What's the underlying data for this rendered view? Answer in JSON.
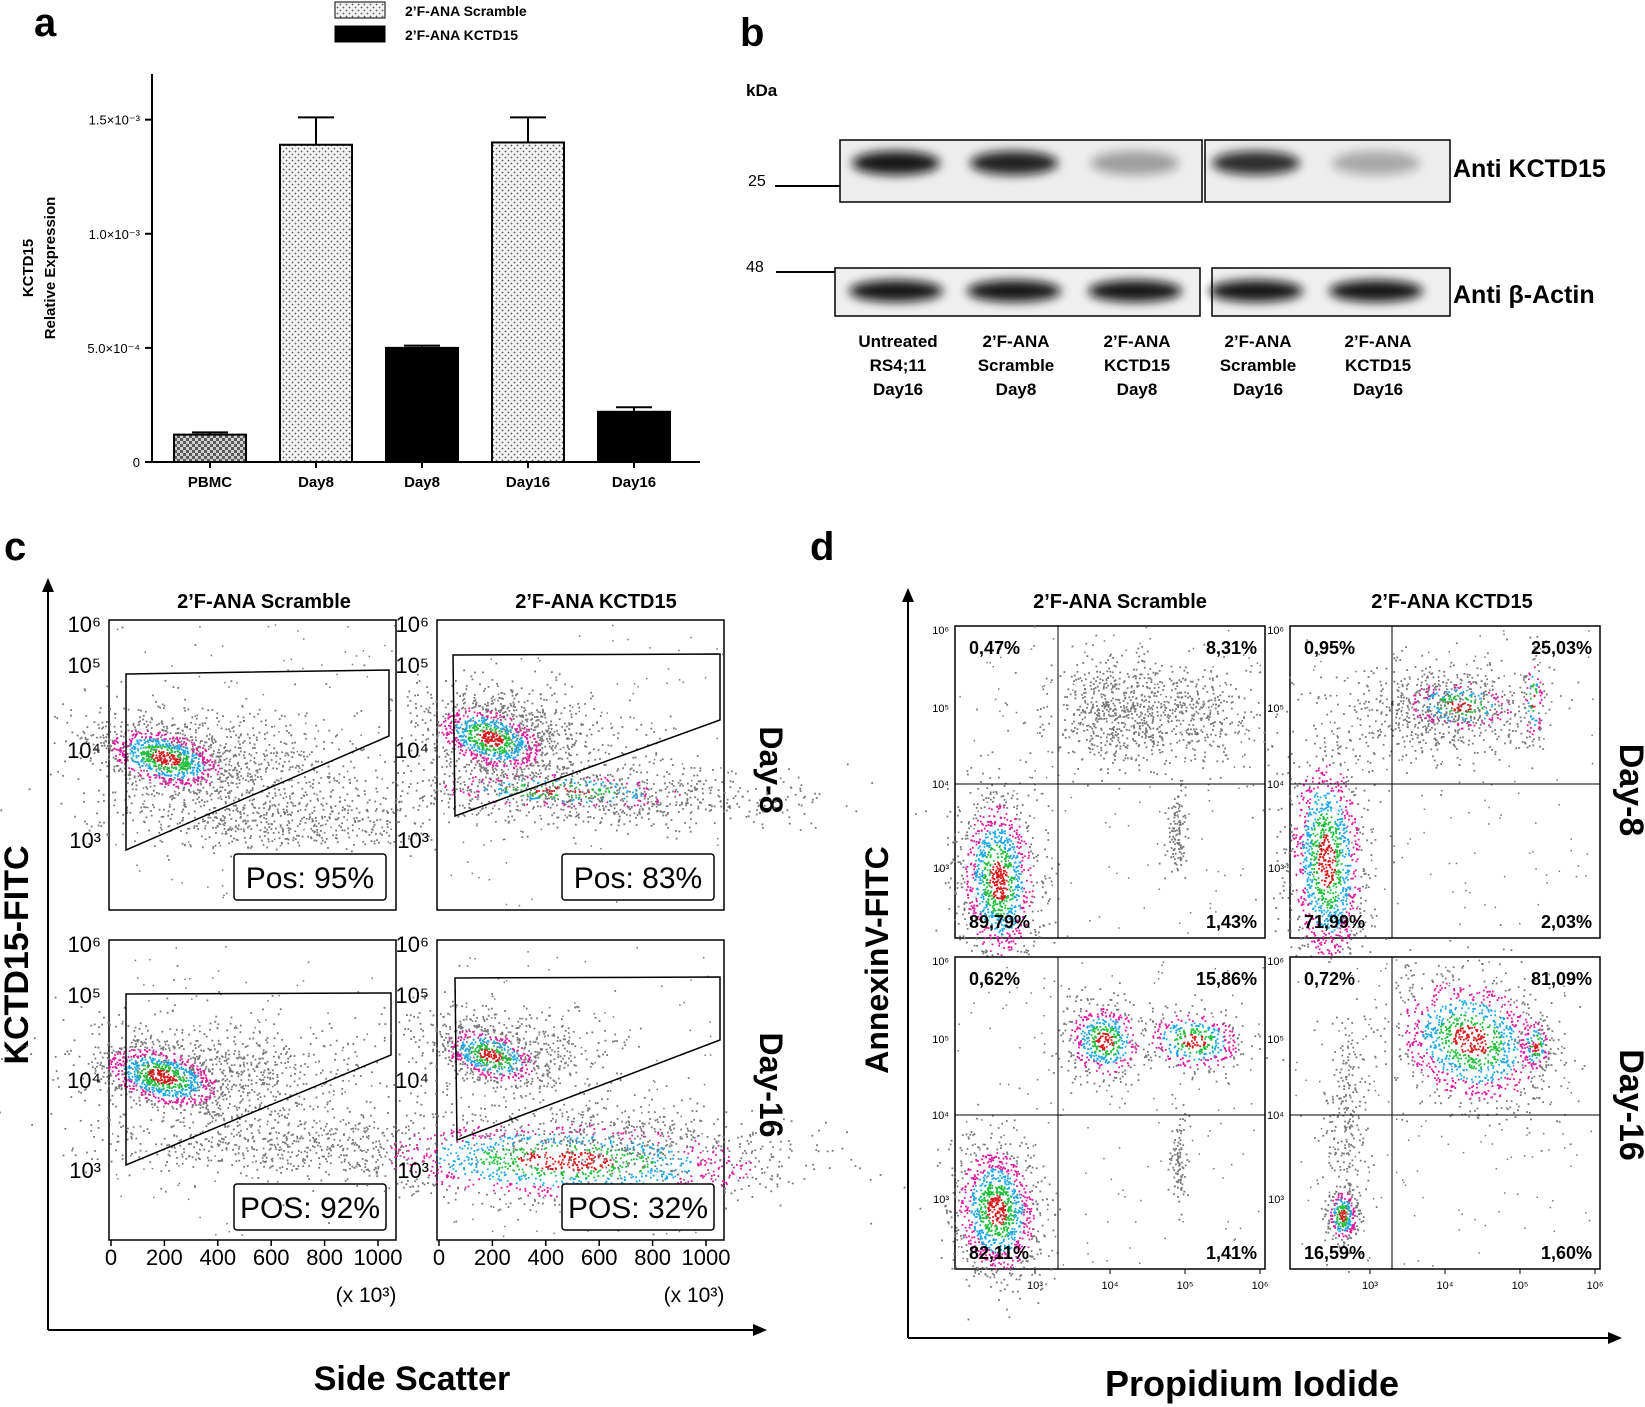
{
  "panels": {
    "a": "a",
    "b": "b",
    "c": "c",
    "d": "d"
  },
  "colors": {
    "scramble_fill": "#f2f2f2",
    "kctd15_fill": "#000000",
    "pbmc_fill": "#bdbdbd",
    "density_high": "#d7191c",
    "density_mid": "#1fbf3a",
    "density_low": "#1aa7e6",
    "density_edge": "#e0199e",
    "dots": "#777777"
  },
  "chart_data": [
    {
      "type": "bar",
      "panel": "a",
      "legend": [
        {
          "name": "2’F-ANA Scramble",
          "pattern": "dotted"
        },
        {
          "name": "2’F-ANA KCTD15",
          "pattern": "solid"
        }
      ],
      "legend_position": "top-center",
      "ylabel_line1": "KCTD15",
      "ylabel_line2": "Relative Expression",
      "ylim": [
        0,
        0.0017
      ],
      "yticks": [
        {
          "value": 0,
          "label": "0"
        },
        {
          "value": 0.0005,
          "label": "5.0×10⁻⁴"
        },
        {
          "value": 0.001,
          "label": "1.0×10⁻³"
        },
        {
          "value": 0.0015,
          "label": "1.5×10⁻³"
        }
      ],
      "categories": [
        "PBMC",
        "Day8",
        "Day8",
        "Day16",
        "Day16"
      ],
      "bars": [
        {
          "category": "PBMC",
          "group": "PBMC",
          "value": 0.00012,
          "error": 1e-05
        },
        {
          "category": "Day8",
          "group": "2’F-ANA Scramble",
          "value": 0.00139,
          "error": 0.00012
        },
        {
          "category": "Day8",
          "group": "2’F-ANA KCTD15",
          "value": 0.0005,
          "error": 1e-05
        },
        {
          "category": "Day16",
          "group": "2’F-ANA Scramble",
          "value": 0.0014,
          "error": 0.00011
        },
        {
          "category": "Day16",
          "group": "2’F-ANA KCTD15",
          "value": 0.00022,
          "error": 2e-05
        }
      ]
    },
    {
      "type": "table",
      "panel": "b",
      "kda_label": "kDa",
      "markers": [
        "25",
        "48"
      ],
      "rows": [
        "Anti KCTD15",
        "Anti β-Actin"
      ],
      "lanes": [
        {
          "lines": [
            "Untreated",
            "RS4;11",
            "Day16"
          ],
          "kctd15_intensity": 0.95,
          "actin_intensity": 0.95
        },
        {
          "lines": [
            "2’F-ANA",
            "Scramble",
            "Day8"
          ],
          "kctd15_intensity": 0.9,
          "actin_intensity": 0.95
        },
        {
          "lines": [
            "2’F-ANA",
            "KCTD15",
            "Day8"
          ],
          "kctd15_intensity": 0.35,
          "actin_intensity": 0.95
        },
        {
          "lines": [
            "2’F-ANA",
            "Scramble",
            "Day16"
          ],
          "kctd15_intensity": 0.85,
          "actin_intensity": 0.95
        },
        {
          "lines": [
            "2’F-ANA",
            "KCTD15",
            "Day16"
          ],
          "kctd15_intensity": 0.3,
          "actin_intensity": 0.95
        }
      ]
    },
    {
      "type": "scatter",
      "panel": "c",
      "xlabel": "Side Scatter",
      "ylabel": "KCTD15-FITC",
      "x_multiplier": "(x 10³)",
      "xticks": [
        "0",
        "200",
        "400",
        "600",
        "800",
        "1000"
      ],
      "yticks": [
        "10³",
        "10⁴",
        "10⁵",
        "10⁶"
      ],
      "columns": [
        "2’F-ANA Scramble",
        "2’F-ANA KCTD15"
      ],
      "rows": [
        "Day-8",
        "Day-16"
      ],
      "plots": [
        {
          "row": 0,
          "col": 0,
          "gate_label": "Pos: 95%"
        },
        {
          "row": 0,
          "col": 1,
          "gate_label": "Pos: 83%"
        },
        {
          "row": 1,
          "col": 0,
          "gate_label": "POS: 92%"
        },
        {
          "row": 1,
          "col": 1,
          "gate_label": "POS: 32%"
        }
      ]
    },
    {
      "type": "scatter",
      "panel": "d",
      "xlabel": "Propidium Iodide",
      "ylabel": "AnnexinV-FITC",
      "xticks": [
        "10³",
        "10⁴",
        "10⁵",
        "10⁶"
      ],
      "yticks": [
        "10³",
        "10⁴",
        "10⁵",
        "10⁶"
      ],
      "columns": [
        "2’F-ANA Scramble",
        "2’F-ANA KCTD15"
      ],
      "rows": [
        "Day-8",
        "Day-16"
      ],
      "plots": [
        {
          "row": 0,
          "col": 0,
          "ul": "0,47%",
          "ur": "8,31%",
          "ll": "89,79%",
          "lr": "1,43%"
        },
        {
          "row": 0,
          "col": 1,
          "ul": "0,95%",
          "ur": "25,03%",
          "ll": "71,99%",
          "lr": "2,03%"
        },
        {
          "row": 1,
          "col": 0,
          "ul": "0,62%",
          "ur": "15,86%",
          "ll": "82,11%",
          "lr": "1,41%"
        },
        {
          "row": 1,
          "col": 1,
          "ul": "0,72%",
          "ur": "81,09%",
          "ll": "16,59%",
          "lr": "1,60%"
        }
      ]
    }
  ]
}
